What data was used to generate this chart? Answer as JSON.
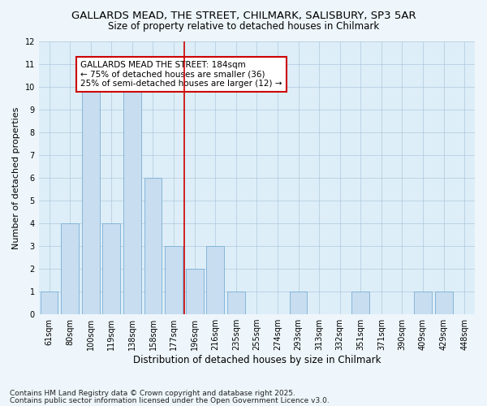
{
  "title_line1": "GALLARDS MEAD, THE STREET, CHILMARK, SALISBURY, SP3 5AR",
  "title_line2": "Size of property relative to detached houses in Chilmark",
  "xlabel": "Distribution of detached houses by size in Chilmark",
  "ylabel": "Number of detached properties",
  "categories": [
    "61sqm",
    "80sqm",
    "100sqm",
    "119sqm",
    "138sqm",
    "158sqm",
    "177sqm",
    "196sqm",
    "216sqm",
    "235sqm",
    "255sqm",
    "274sqm",
    "293sqm",
    "313sqm",
    "332sqm",
    "351sqm",
    "371sqm",
    "390sqm",
    "409sqm",
    "429sqm",
    "448sqm"
  ],
  "values": [
    1,
    4,
    10,
    4,
    10,
    6,
    3,
    2,
    3,
    1,
    0,
    0,
    1,
    0,
    0,
    1,
    0,
    0,
    1,
    1,
    0
  ],
  "bar_color": "#c8ddf0",
  "bar_edge_color": "#7aafd4",
  "ylim": [
    0,
    12
  ],
  "yticks": [
    0,
    1,
    2,
    3,
    4,
    5,
    6,
    7,
    8,
    9,
    10,
    11,
    12
  ],
  "grid_color": "#b0c8dc",
  "bg_color": "#ddeef8",
  "fig_bg_color": "#eef6fb",
  "annotation_title": "GALLARDS MEAD THE STREET: 184sqm",
  "annotation_line1": "← 75% of detached houses are smaller (36)",
  "annotation_line2": "25% of semi-detached houses are larger (12) →",
  "annotation_box_facecolor": "#ffffff",
  "annotation_box_edgecolor": "#cc0000",
  "vline_x_index": 6,
  "vline_color": "#cc0000",
  "footer_line1": "Contains HM Land Registry data © Crown copyright and database right 2025.",
  "footer_line2": "Contains public sector information licensed under the Open Government Licence v3.0.",
  "title_fontsize": 9.5,
  "subtitle_fontsize": 8.5,
  "tick_fontsize": 7,
  "ylabel_fontsize": 8,
  "xlabel_fontsize": 8.5,
  "annotation_fontsize": 7.5,
  "footer_fontsize": 6.5
}
